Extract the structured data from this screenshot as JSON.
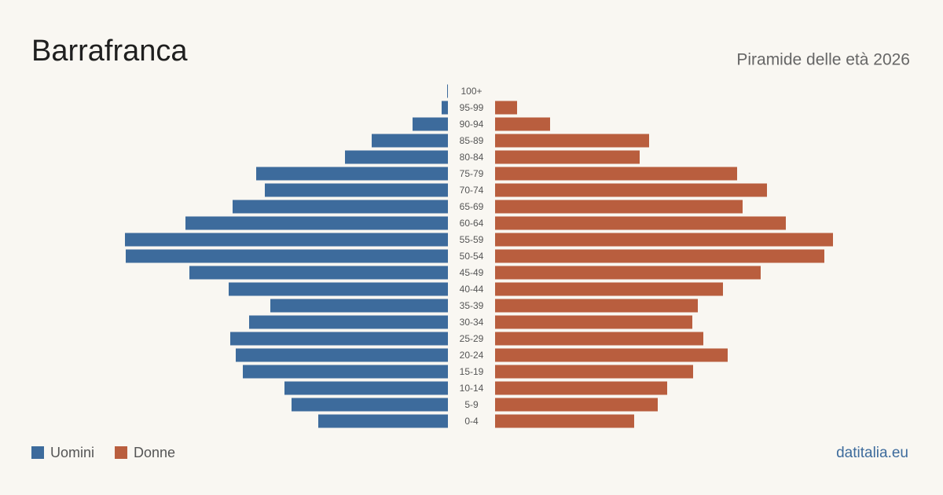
{
  "chart_data": {
    "type": "pyramid",
    "title": "Barrafranca",
    "subtitle": "Piramide delle età 2026",
    "source": "datitalia.eu",
    "categories": [
      "100+",
      "95-99",
      "90-94",
      "85-89",
      "80-84",
      "75-79",
      "70-74",
      "65-69",
      "60-64",
      "55-59",
      "50-54",
      "45-49",
      "40-44",
      "35-39",
      "30-34",
      "25-29",
      "20-24",
      "15-19",
      "10-14",
      "5-9",
      "0-4"
    ],
    "series": [
      {
        "name": "Uomini",
        "color": "#3d6b9c",
        "values": [
          1,
          8,
          45,
          97,
          131,
          244,
          233,
          274,
          334,
          411,
          410,
          329,
          279,
          226,
          253,
          277,
          270,
          261,
          208,
          199,
          165
        ]
      },
      {
        "name": "Donne",
        "color": "#b95e3e",
        "values": [
          0,
          28,
          70,
          196,
          184,
          308,
          346,
          315,
          370,
          430,
          419,
          338,
          290,
          258,
          251,
          265,
          296,
          252,
          219,
          207,
          177
        ]
      }
    ]
  }
}
